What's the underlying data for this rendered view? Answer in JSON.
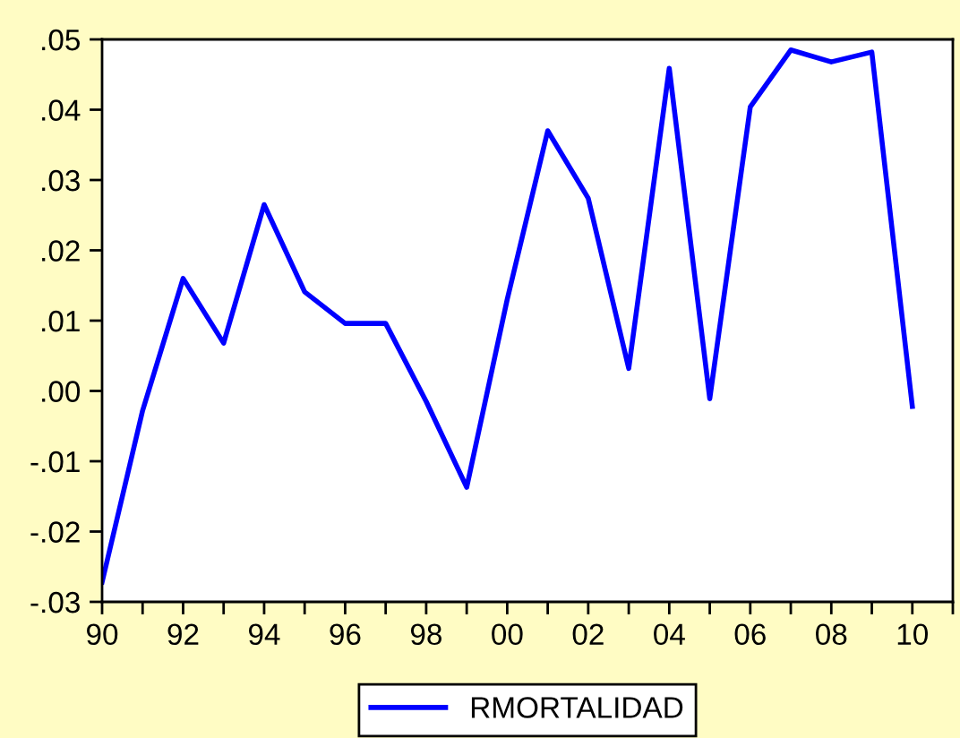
{
  "chart_data": {
    "type": "line",
    "x": [
      1990,
      1991,
      1992,
      1993,
      1994,
      1995,
      1996,
      1997,
      1998,
      1999,
      2000,
      2001,
      2002,
      2003,
      2004,
      2005,
      2006,
      2007,
      2008,
      2009,
      2010
    ],
    "series": [
      {
        "name": "RMORTALIDAD",
        "color": "#0000ff",
        "values": [
          -0.0272,
          -0.0028,
          0.016,
          0.0068,
          0.0265,
          0.0141,
          0.0096,
          0.0096,
          -0.0015,
          -0.0137,
          0.013,
          0.037,
          0.0274,
          0.0032,
          0.0459,
          -0.0011,
          0.0404,
          0.0485,
          0.0468,
          0.0482,
          -0.0022
        ]
      }
    ],
    "xlim": [
      1990,
      2011
    ],
    "xticks": [
      {
        "value": 1990,
        "label": "90"
      },
      {
        "value": 1991,
        "label": null
      },
      {
        "value": 1992,
        "label": "92"
      },
      {
        "value": 1993,
        "label": null
      },
      {
        "value": 1994,
        "label": "94"
      },
      {
        "value": 1995,
        "label": null
      },
      {
        "value": 1996,
        "label": "96"
      },
      {
        "value": 1997,
        "label": null
      },
      {
        "value": 1998,
        "label": "98"
      },
      {
        "value": 1999,
        "label": null
      },
      {
        "value": 2000,
        "label": "00"
      },
      {
        "value": 2001,
        "label": null
      },
      {
        "value": 2002,
        "label": "02"
      },
      {
        "value": 2003,
        "label": null
      },
      {
        "value": 2004,
        "label": "04"
      },
      {
        "value": 2005,
        "label": null
      },
      {
        "value": 2006,
        "label": "06"
      },
      {
        "value": 2007,
        "label": null
      },
      {
        "value": 2008,
        "label": "08"
      },
      {
        "value": 2009,
        "label": null
      },
      {
        "value": 2010,
        "label": "10"
      },
      {
        "value": 2011,
        "label": null
      }
    ],
    "ylim": [
      -0.03,
      0.05
    ],
    "yticks": [
      {
        "value": -0.03,
        "label": "-.03"
      },
      {
        "value": -0.02,
        "label": "-.02"
      },
      {
        "value": -0.01,
        "label": "-.01"
      },
      {
        "value": 0,
        "label": ".00"
      },
      {
        "value": 0.01,
        "label": ".01"
      },
      {
        "value": 0.02,
        "label": ".02"
      },
      {
        "value": 0.03,
        "label": ".03"
      },
      {
        "value": 0.04,
        "label": ".04"
      },
      {
        "value": 0.05,
        "label": ".05"
      }
    ],
    "grid": false,
    "legend": "bottom",
    "marker": "none",
    "line_style": "solid"
  }
}
